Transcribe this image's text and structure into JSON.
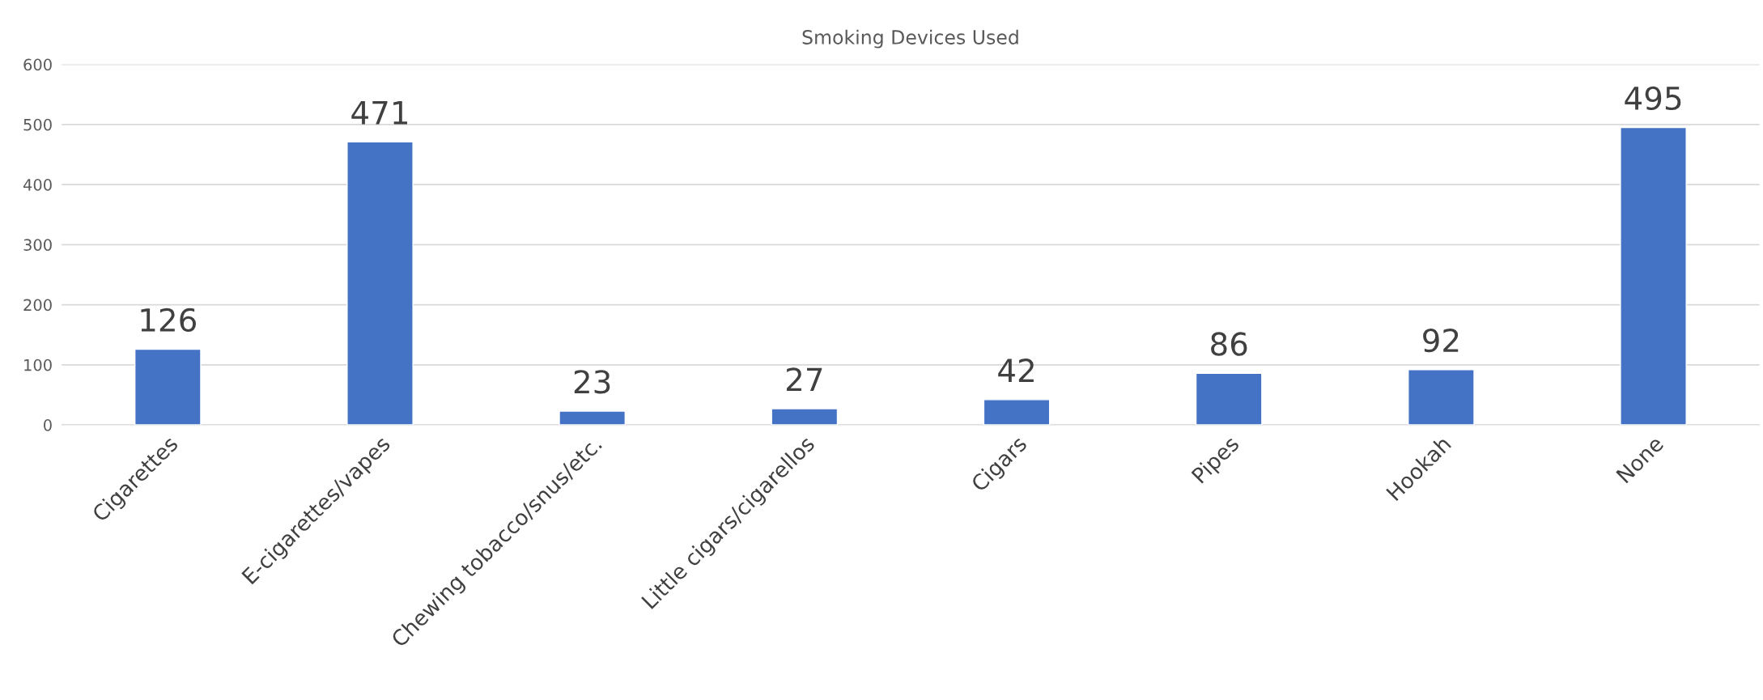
{
  "chart_data": {
    "type": "bar",
    "title": "Smoking Devices Used",
    "categories": [
      "Cigarettes",
      "E-cigarettes/vapes",
      "Chewing tobacco/snus/etc.",
      "Little cigars/cigarellos",
      "Cigars",
      "Pipes",
      "Hookah",
      "None"
    ],
    "values": [
      126,
      471,
      23,
      27,
      42,
      86,
      92,
      495
    ],
    "color": "#4472c4",
    "ylim": [
      0,
      600
    ],
    "yticks": [
      0,
      100,
      200,
      300,
      400,
      500,
      600
    ],
    "grid": "y",
    "data_labels": true,
    "legend": false
  }
}
